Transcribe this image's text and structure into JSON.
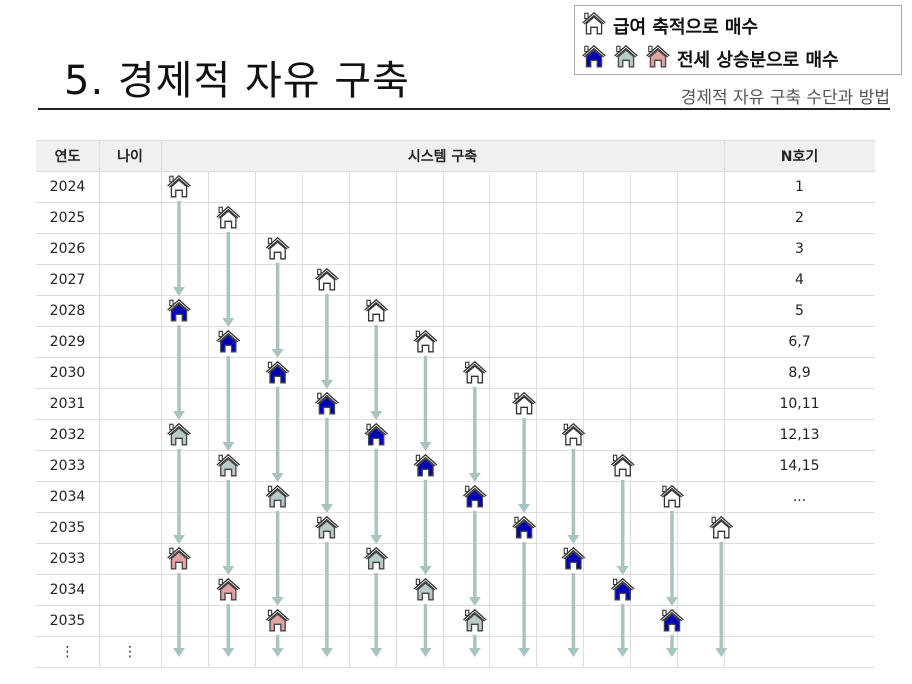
{
  "header": {
    "title": "5. 경제적 자유 구축",
    "subtitle": "경제적 자유 구축 수단과 방법"
  },
  "legend": {
    "items": [
      {
        "icons": [
          "white"
        ],
        "label": "급여 축적으로 매수"
      },
      {
        "icons": [
          "blue",
          "gray",
          "pink"
        ],
        "label": "전세 상승분으로 매수"
      }
    ]
  },
  "colors": {
    "white": "#ffffff",
    "blue": "#0000b8",
    "gray": "#b8cbc8",
    "pink": "#e2a3a3",
    "arrow": "#a9c3c0"
  },
  "table": {
    "headers": {
      "year": "연도",
      "age": "나이",
      "system": "시스템 구축",
      "unit": "N호기"
    },
    "system_columns": 12,
    "rows": [
      {
        "year": "2024",
        "age": "",
        "unit": "1",
        "houses": [
          {
            "col": 0,
            "type": "white"
          }
        ]
      },
      {
        "year": "2025",
        "age": "",
        "unit": "2",
        "houses": [
          {
            "col": 1,
            "type": "white"
          }
        ]
      },
      {
        "year": "2026",
        "age": "",
        "unit": "3",
        "houses": [
          {
            "col": 2,
            "type": "white"
          }
        ]
      },
      {
        "year": "2027",
        "age": "",
        "unit": "4",
        "houses": [
          {
            "col": 3,
            "type": "white"
          }
        ]
      },
      {
        "year": "2028",
        "age": "",
        "unit": "5",
        "houses": [
          {
            "col": 0,
            "type": "blue"
          },
          {
            "col": 4,
            "type": "white"
          }
        ]
      },
      {
        "year": "2029",
        "age": "",
        "unit": "6,7",
        "houses": [
          {
            "col": 1,
            "type": "blue"
          },
          {
            "col": 5,
            "type": "white"
          }
        ]
      },
      {
        "year": "2030",
        "age": "",
        "unit": "8,9",
        "houses": [
          {
            "col": 2,
            "type": "blue"
          },
          {
            "col": 6,
            "type": "white"
          }
        ]
      },
      {
        "year": "2031",
        "age": "",
        "unit": "10,11",
        "houses": [
          {
            "col": 3,
            "type": "blue"
          },
          {
            "col": 7,
            "type": "white"
          }
        ]
      },
      {
        "year": "2032",
        "age": "",
        "unit": "12,13",
        "houses": [
          {
            "col": 0,
            "type": "gray"
          },
          {
            "col": 4,
            "type": "blue"
          },
          {
            "col": 8,
            "type": "white"
          }
        ]
      },
      {
        "year": "2033",
        "age": "",
        "unit": "14,15",
        "houses": [
          {
            "col": 1,
            "type": "gray"
          },
          {
            "col": 5,
            "type": "blue"
          },
          {
            "col": 9,
            "type": "white"
          }
        ]
      },
      {
        "year": "2034",
        "age": "",
        "unit": "...",
        "houses": [
          {
            "col": 2,
            "type": "gray"
          },
          {
            "col": 6,
            "type": "blue"
          },
          {
            "col": 10,
            "type": "white"
          }
        ]
      },
      {
        "year": "2035",
        "age": "",
        "unit": "",
        "houses": [
          {
            "col": 3,
            "type": "gray"
          },
          {
            "col": 7,
            "type": "blue"
          },
          {
            "col": 11,
            "type": "white"
          }
        ]
      },
      {
        "year": "2033",
        "age": "",
        "unit": "",
        "houses": [
          {
            "col": 0,
            "type": "pink"
          },
          {
            "col": 4,
            "type": "gray"
          },
          {
            "col": 8,
            "type": "blue"
          }
        ]
      },
      {
        "year": "2034",
        "age": "",
        "unit": "",
        "houses": [
          {
            "col": 1,
            "type": "pink"
          },
          {
            "col": 5,
            "type": "gray"
          },
          {
            "col": 9,
            "type": "blue"
          }
        ]
      },
      {
        "year": "2035",
        "age": "",
        "unit": "",
        "houses": [
          {
            "col": 2,
            "type": "pink"
          },
          {
            "col": 6,
            "type": "gray"
          },
          {
            "col": 10,
            "type": "blue"
          }
        ]
      },
      {
        "year": "⋮",
        "age": "⋮",
        "unit": "",
        "houses": []
      }
    ]
  }
}
